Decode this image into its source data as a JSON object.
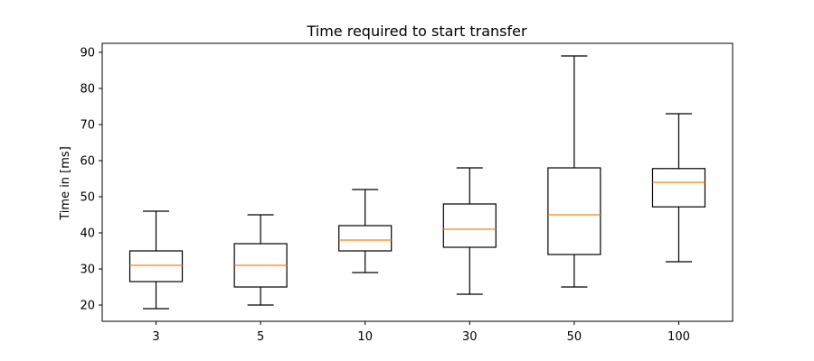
{
  "chart_data": {
    "type": "box",
    "title": "Time required to start transfer",
    "xlabel": "",
    "ylabel": "Time in [ms]",
    "categories": [
      "3",
      "5",
      "10",
      "30",
      "50",
      "100"
    ],
    "boxes": [
      {
        "category": "3",
        "min": 19,
        "q1": 26.5,
        "median": 31,
        "q3": 35,
        "max": 46
      },
      {
        "category": "5",
        "min": 20,
        "q1": 25,
        "median": 31,
        "q3": 37,
        "max": 45
      },
      {
        "category": "10",
        "min": 29,
        "q1": 35,
        "median": 38,
        "q3": 42,
        "max": 52
      },
      {
        "category": "30",
        "min": 23,
        "q1": 36,
        "median": 41,
        "q3": 48,
        "max": 58
      },
      {
        "category": "50",
        "min": 25,
        "q1": 34,
        "median": 45,
        "q3": 58,
        "max": 89
      },
      {
        "category": "100",
        "min": 32,
        "q1": 47.2,
        "median": 54,
        "q3": 57.8,
        "max": 73
      }
    ],
    "yticks": [
      20,
      30,
      40,
      50,
      60,
      70,
      80,
      90
    ],
    "ylim": [
      15.5,
      92.5
    ],
    "grid": false,
    "colors": {
      "box": "#000000",
      "median": "#ff7f0e"
    }
  }
}
